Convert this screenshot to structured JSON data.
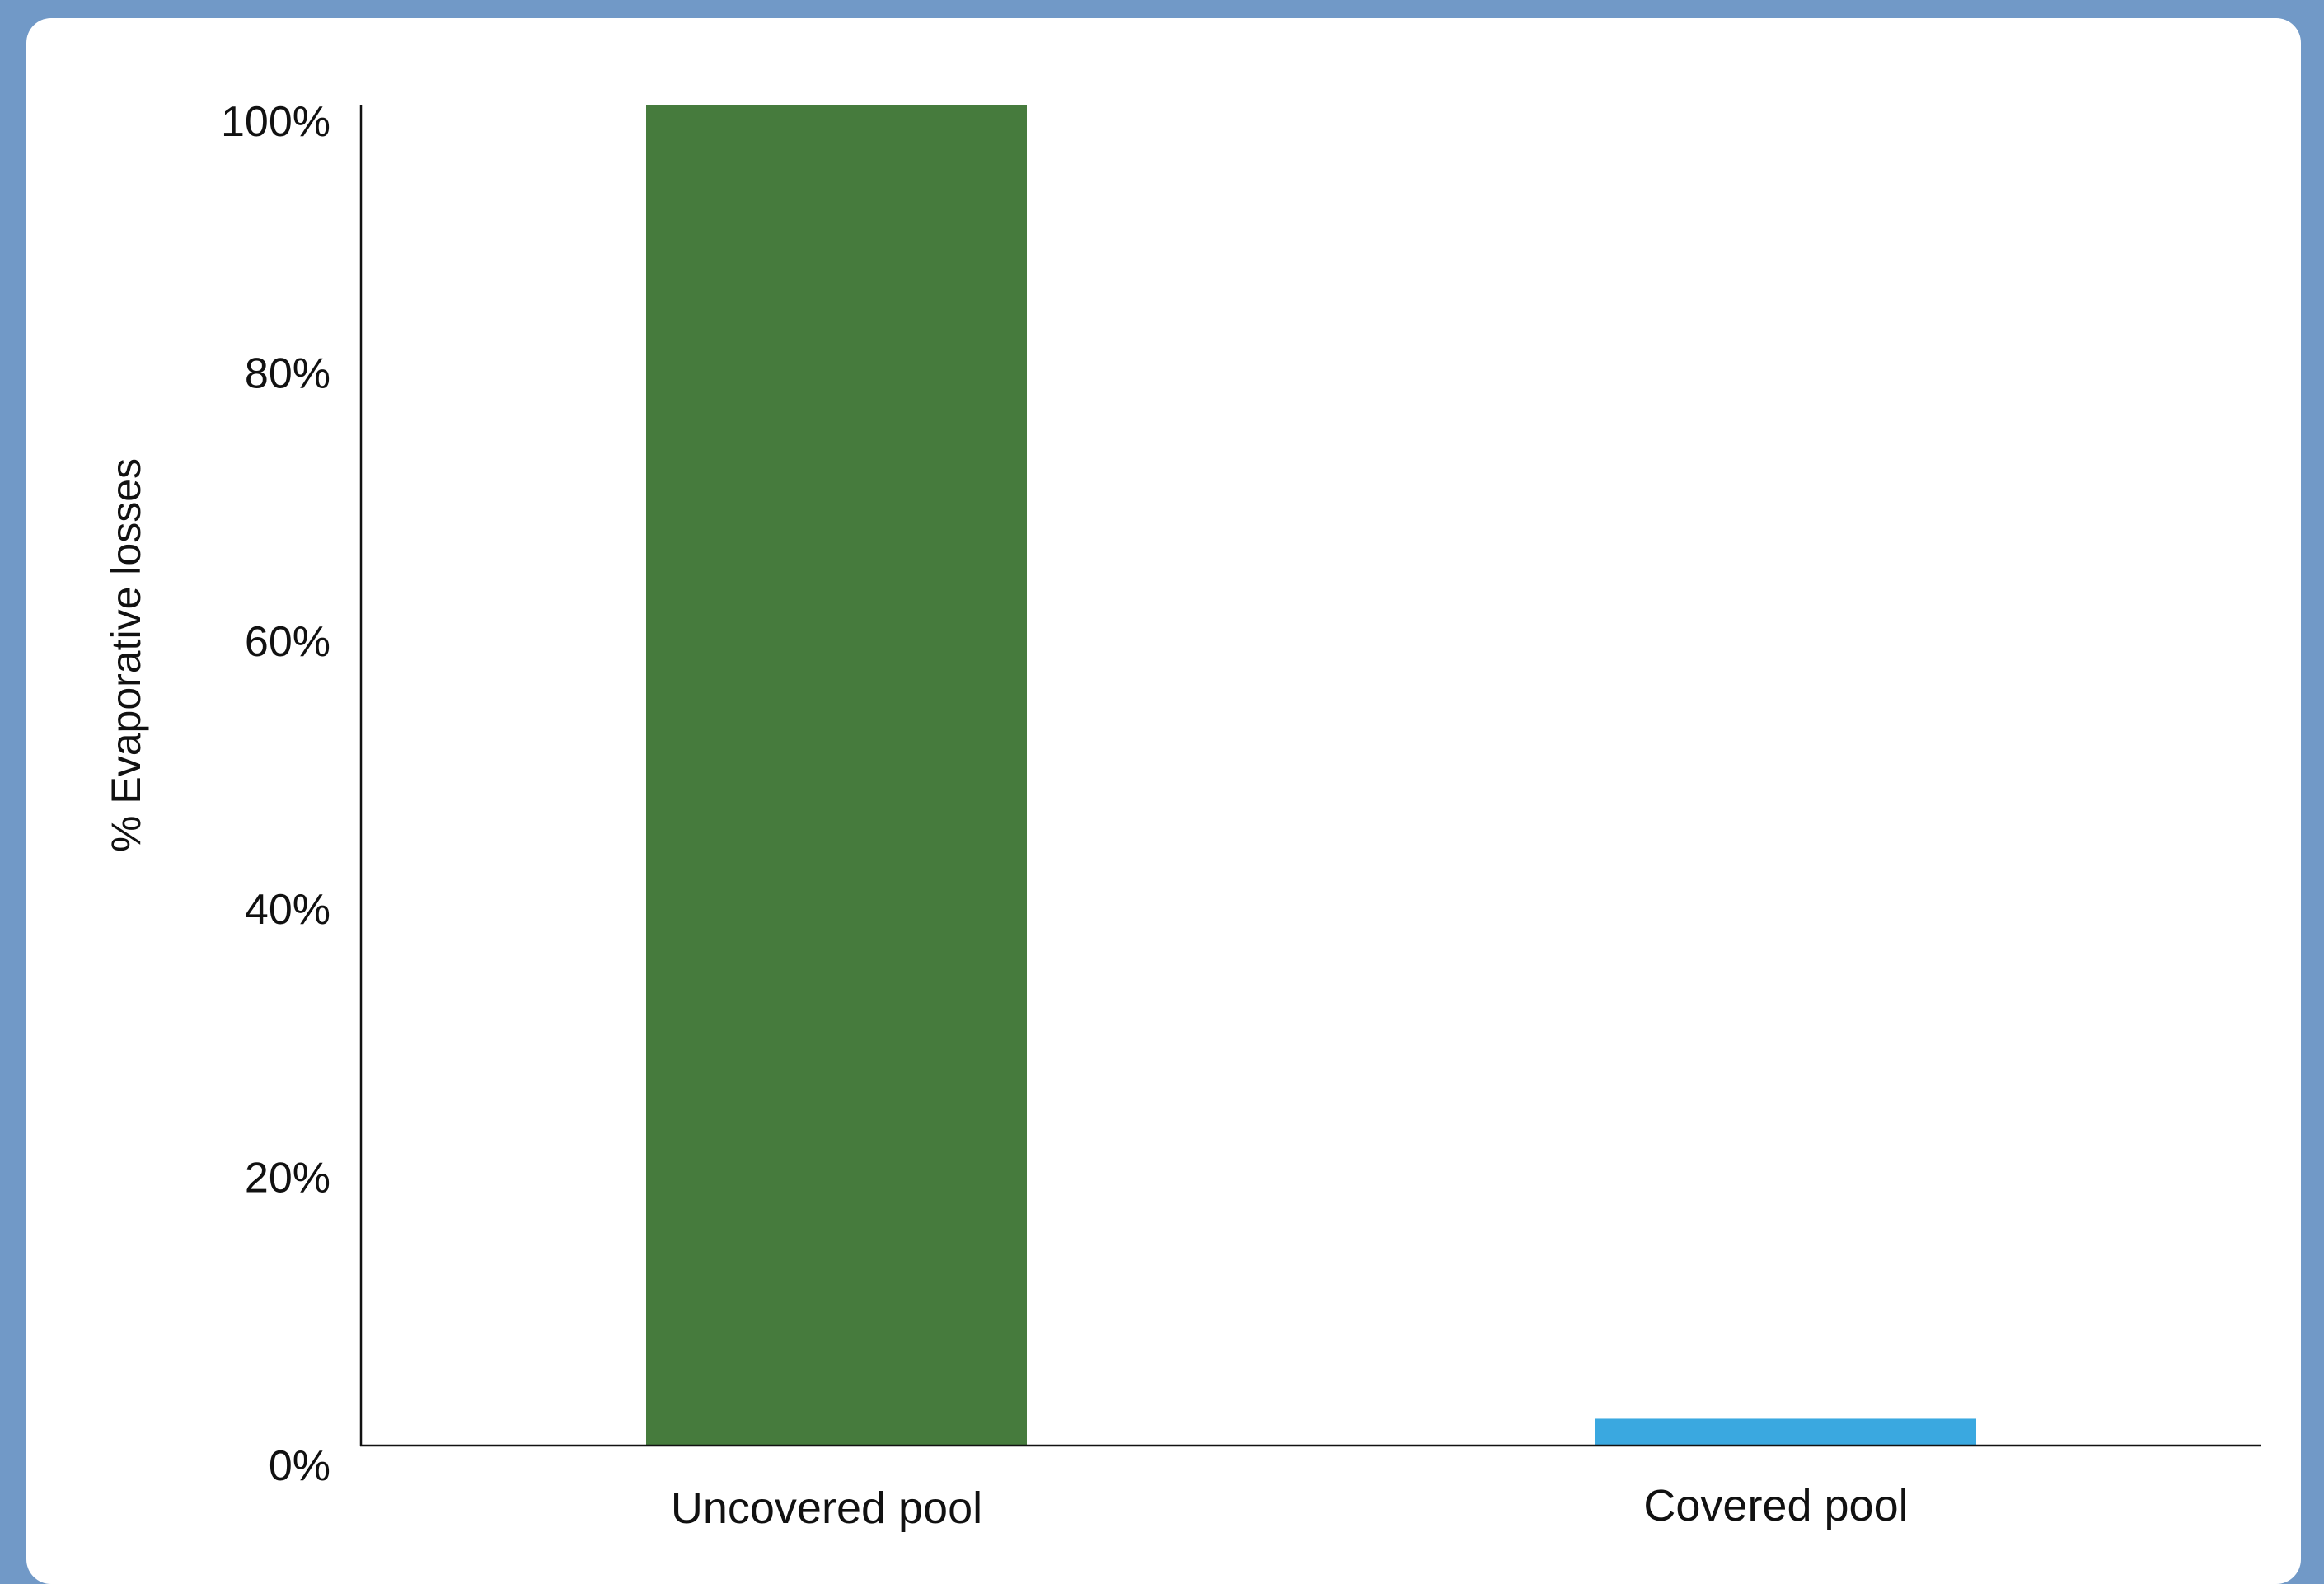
{
  "chart_data": {
    "type": "bar",
    "title": "",
    "xlabel": "",
    "ylabel": "% Evaporative losses",
    "categories": [
      "Uncovered pool",
      "Covered pool"
    ],
    "values": [
      100,
      2
    ],
    "colors": [
      "#467b3d",
      "#3aa8e0"
    ],
    "ylim": [
      0,
      100
    ],
    "yticks": [
      0,
      20,
      40,
      60,
      80,
      100
    ],
    "ytick_labels": [
      "0%",
      "20%",
      "40%",
      "60%",
      "80%",
      "100%"
    ],
    "grid": false,
    "legend": "none"
  }
}
